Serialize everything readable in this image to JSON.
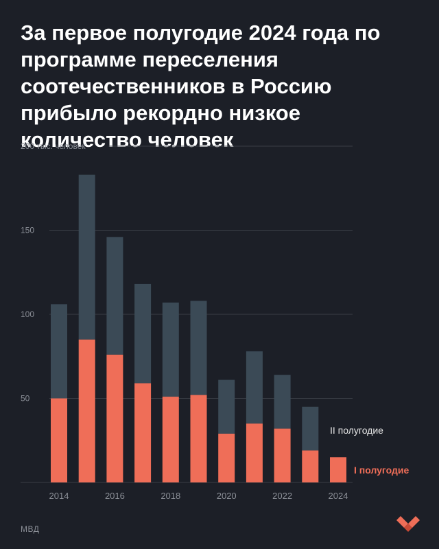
{
  "title": "За первое полугодие 2024 года по программе переселения соотечественников в Россию прибыло рекордно низкое количество человек",
  "source": "МВД",
  "colors": {
    "background": "#1c1f27",
    "h1": "#ef6e58",
    "h2": "#3b4a56",
    "grid": "#3a3e46",
    "tick": "#8a8e96"
  },
  "chart_data": {
    "type": "bar",
    "stacked": true,
    "categories": [
      "2014",
      "2015",
      "2016",
      "2017",
      "2018",
      "2019",
      "2020",
      "2021",
      "2022",
      "2023",
      "2024"
    ],
    "series": [
      {
        "name": "I полугодие",
        "values": [
          50,
          85,
          76,
          59,
          51,
          52,
          29,
          35,
          32,
          19,
          15
        ]
      },
      {
        "name": "II полугодие",
        "values": [
          56,
          98,
          70,
          59,
          56,
          56,
          32,
          43,
          32,
          26,
          null
        ]
      }
    ],
    "ylabel": "тыс. человек",
    "ylim": [
      0,
      200
    ],
    "y_ticks": [
      {
        "value": 50,
        "label": "50"
      },
      {
        "value": 100,
        "label": "100"
      },
      {
        "value": 150,
        "label": "150"
      },
      {
        "value": 200,
        "label": "200 тыс. человек"
      }
    ],
    "x_tick_labels": [
      "2014",
      "",
      "2016",
      "",
      "2018",
      "",
      "2020",
      "",
      "2022",
      "",
      "2024"
    ],
    "grid": true,
    "legend_placement": "right"
  }
}
